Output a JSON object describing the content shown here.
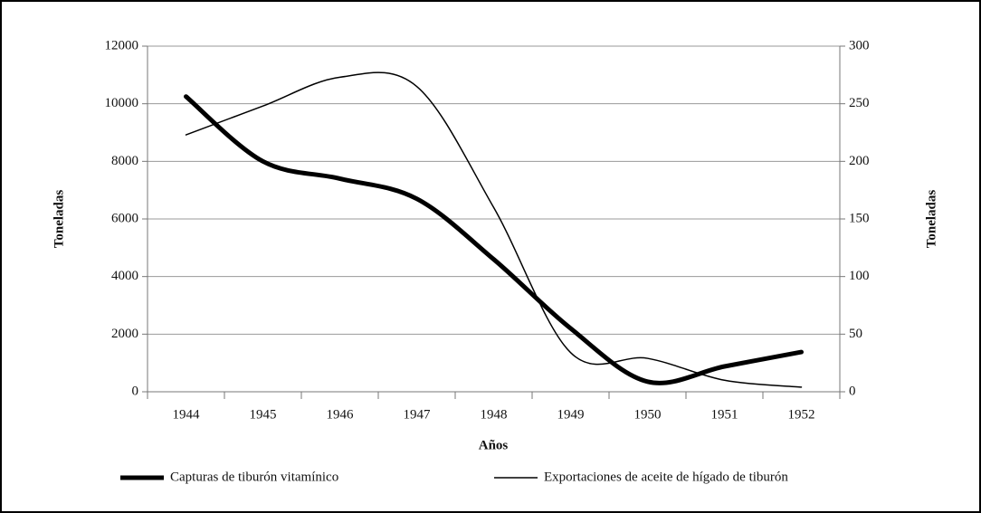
{
  "chart_data": {
    "type": "line",
    "categories": [
      "1944",
      "1945",
      "1946",
      "1947",
      "1948",
      "1949",
      "1950",
      "1951",
      "1952"
    ],
    "series": [
      {
        "name": "Capturas de tiburón vitamínico",
        "color": "#000000",
        "width": 5,
        "values": [
          10250,
          8000,
          7400,
          6700,
          4600,
          2200,
          350,
          880,
          1380
        ]
      },
      {
        "name": "Exportaciones de aceite de hígado de tiburón",
        "color": "#000000",
        "width": 1.5,
        "axis": "y2",
        "values": [
          223,
          248,
          273,
          265,
          160,
          34,
          29,
          10,
          4
        ]
      }
    ],
    "ylim": [
      0,
      12000
    ],
    "yticks": [
      0,
      2000,
      4000,
      6000,
      8000,
      10000,
      12000
    ],
    "y2lim": [
      0,
      300
    ],
    "y2ticks": [
      0,
      50,
      100,
      150,
      200,
      250,
      300
    ],
    "ylabel": "Toneladas",
    "y2label": "Toneladas",
    "xlabel": "Años",
    "grid": true,
    "smooth": true,
    "legend": "bottom"
  }
}
